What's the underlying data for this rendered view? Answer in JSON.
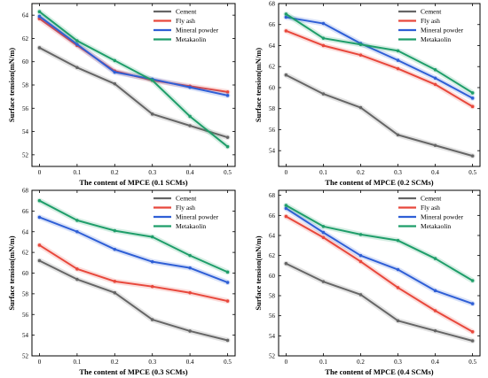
{
  "colors": {
    "Cement": "#666666",
    "Fly ash": "#e8483c",
    "Mineral powder": "#2f5fd6",
    "Metakaolin": "#1f9e6a"
  },
  "chart_data": [
    {
      "type": "line",
      "title": "",
      "xlabel": "The content of MPCE (0.1 SCMs)",
      "ylabel": "Surface tension(mN/m)",
      "x": [
        0,
        0.1,
        0.2,
        0.3,
        0.4,
        0.5
      ],
      "xticks": [
        "0",
        "0.1",
        "0.2",
        "0.3",
        "0.4",
        "0.5"
      ],
      "ylim": [
        51,
        65
      ],
      "yticks": [
        52,
        54,
        56,
        58,
        60,
        62,
        64
      ],
      "legend": "top-right",
      "series": [
        {
          "name": "Cement",
          "values": [
            61.2,
            59.5,
            58.1,
            55.5,
            54.5,
            53.5
          ]
        },
        {
          "name": "Fly ash",
          "values": [
            63.7,
            61.4,
            59.2,
            58.4,
            57.9,
            57.4
          ]
        },
        {
          "name": "Mineral powder",
          "values": [
            63.9,
            61.5,
            59.1,
            58.5,
            57.8,
            57.1
          ]
        },
        {
          "name": "Metakaolin",
          "values": [
            64.3,
            61.8,
            60.1,
            58.4,
            55.3,
            52.7
          ]
        }
      ]
    },
    {
      "type": "line",
      "title": "",
      "xlabel": "The content of MPCE (0.2 SCMs)",
      "ylabel": "Surface tension(mN/m)",
      "x": [
        0,
        0.1,
        0.2,
        0.3,
        0.4,
        0.5
      ],
      "xticks": [
        "0",
        "0.1",
        "0.2",
        "0.3",
        "0.4",
        "0.5"
      ],
      "ylim": [
        52.5,
        68
      ],
      "yticks": [
        54,
        56,
        58,
        60,
        62,
        64,
        66,
        68
      ],
      "legend": "top-right",
      "series": [
        {
          "name": "Cement",
          "values": [
            61.2,
            59.4,
            58.1,
            55.5,
            54.5,
            53.5
          ]
        },
        {
          "name": "Fly ash",
          "values": [
            65.4,
            64.0,
            63.1,
            61.8,
            60.3,
            58.2
          ]
        },
        {
          "name": "Mineral powder",
          "values": [
            66.7,
            66.1,
            64.2,
            62.6,
            60.9,
            59.0
          ]
        },
        {
          "name": "Metakaolin",
          "values": [
            67.0,
            64.7,
            64.1,
            63.5,
            61.7,
            59.5
          ]
        }
      ]
    },
    {
      "type": "line",
      "title": "",
      "xlabel": "The content of MPCE (0.3 SCMs)",
      "ylabel": "Surface tension(mN/m)",
      "x": [
        0,
        0.1,
        0.2,
        0.3,
        0.4,
        0.5
      ],
      "xticks": [
        "0",
        "0.1",
        "0.2",
        "0.3",
        "0.4",
        "0.5"
      ],
      "ylim": [
        52,
        68
      ],
      "yticks": [
        52,
        54,
        56,
        58,
        60,
        62,
        64,
        66,
        68
      ],
      "legend": "top-right",
      "series": [
        {
          "name": "Cement",
          "values": [
            61.2,
            59.4,
            58.1,
            55.5,
            54.4,
            53.5
          ]
        },
        {
          "name": "Fly ash",
          "values": [
            62.7,
            60.4,
            59.2,
            58.7,
            58.1,
            57.3
          ]
        },
        {
          "name": "Mineral powder",
          "values": [
            65.4,
            64.0,
            62.3,
            61.1,
            60.5,
            59.1
          ]
        },
        {
          "name": "Metakaolin",
          "values": [
            67.0,
            65.1,
            64.1,
            63.5,
            61.7,
            60.1
          ]
        }
      ]
    },
    {
      "type": "line",
      "title": "",
      "xlabel": "The content of MPCE (0.4 SCMs)",
      "ylabel": "Surface tension(mN/m)",
      "x": [
        0,
        0.1,
        0.2,
        0.3,
        0.4,
        0.5
      ],
      "xticks": [
        "0",
        "0.1",
        "0.2",
        "0.3",
        "0.4",
        "0.5"
      ],
      "ylim": [
        52,
        68.5
      ],
      "yticks": [
        52,
        54,
        56,
        58,
        60,
        62,
        64,
        66,
        68
      ],
      "legend": "top-right",
      "series": [
        {
          "name": "Cement",
          "values": [
            61.2,
            59.4,
            58.1,
            55.5,
            54.5,
            53.5
          ]
        },
        {
          "name": "Fly ash",
          "values": [
            65.9,
            63.8,
            61.4,
            58.8,
            56.5,
            54.4
          ]
        },
        {
          "name": "Mineral powder",
          "values": [
            66.7,
            64.3,
            62.0,
            60.6,
            58.5,
            57.2
          ]
        },
        {
          "name": "Metakaolin",
          "values": [
            67.0,
            64.9,
            64.1,
            63.5,
            61.7,
            59.5
          ]
        }
      ]
    }
  ]
}
